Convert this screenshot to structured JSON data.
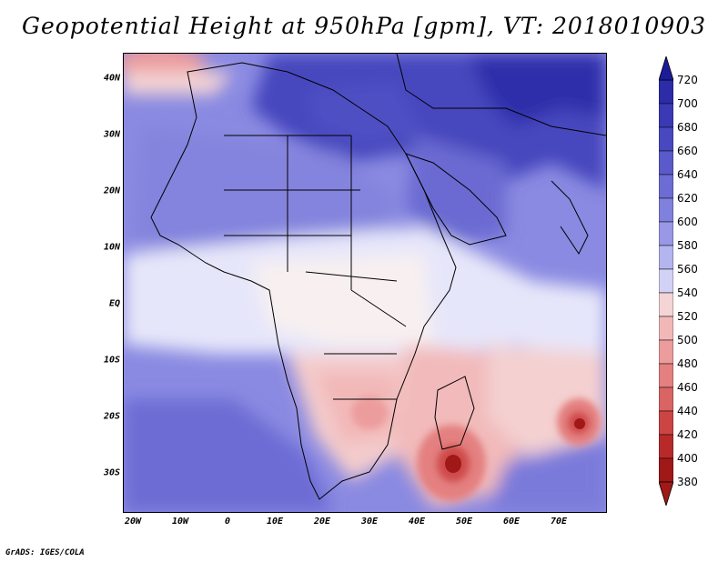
{
  "title": "Geopotential Height at 950hPa [gpm], VT: 2018010903",
  "lat_labels": [
    "40N",
    "30N",
    "20N",
    "10N",
    "EQ",
    "10S",
    "20S",
    "30S"
  ],
  "lon_labels": [
    "20W",
    "10W",
    "0",
    "10E",
    "20E",
    "30E",
    "40E",
    "50E",
    "60E",
    "70E"
  ],
  "colorbar": {
    "levels": [
      "720",
      "700",
      "680",
      "660",
      "640",
      "620",
      "600",
      "580",
      "560",
      "540",
      "520",
      "500",
      "480",
      "460",
      "440",
      "420",
      "400",
      "380"
    ],
    "colors": [
      "#1c1c99",
      "#2c2ca8",
      "#3a3ab5",
      "#4848c0",
      "#5a5acb",
      "#6c6cd4",
      "#8080dd",
      "#9898e6",
      "#b4b4ef",
      "#d2d2f7",
      "#f4d4d4",
      "#f2b8b8",
      "#ec9c9c",
      "#e48080",
      "#da6464",
      "#cc4444",
      "#b82a2a",
      "#a01818"
    ]
  },
  "credit": "GrADS: IGES/COLA"
}
